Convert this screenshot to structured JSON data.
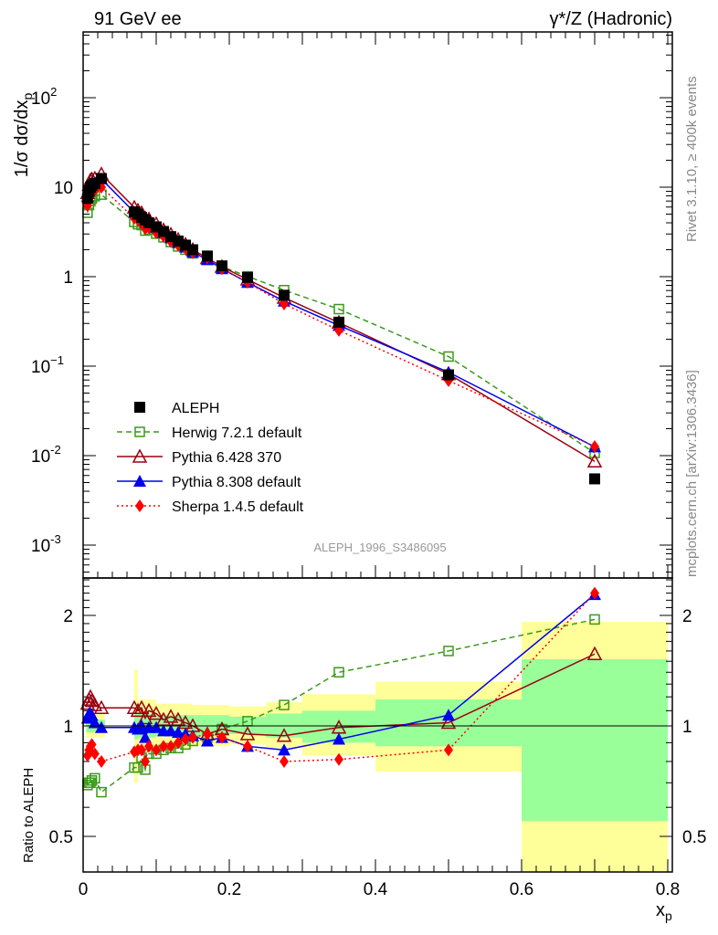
{
  "header": {
    "left_title": "91 GeV ee",
    "right_title": "γ*/Z (Hadronic)",
    "side_label_top": "Rivet 3.1.10, ≥ 400k events",
    "side_label_bottom": "mcplots.cern.ch [arXiv:1306.3436]",
    "watermark": "ALEPH_1996_S3486095"
  },
  "chart_data": {
    "type": "scatter",
    "title": "91 GeV ee — γ*/Z (Hadronic)",
    "xlabel": "x_p",
    "ylabel": "1/σ dσ/dx_p",
    "ratio_ylabel": "Ratio to ALEPH",
    "xlim": [
      0,
      0.8
    ],
    "ylim": [
      0.00043,
      540
    ],
    "yscale": "log",
    "ratio_ylim": [
      0.4,
      2.53
    ],
    "x_ticks": [
      "0",
      "0.2",
      "0.4",
      "0.6",
      "0.8"
    ],
    "y_ticks": [
      "10^-3",
      "10^-2",
      "10^-1",
      "1",
      "10",
      "10^2"
    ],
    "ratio_ticks": [
      "0.5",
      "1",
      "2"
    ],
    "legend_position": "middle-left",
    "x": [
      0.006,
      0.008,
      0.01,
      0.012,
      0.016,
      0.025,
      0.07,
      0.075,
      0.08,
      0.085,
      0.09,
      0.1,
      0.11,
      0.12,
      0.13,
      0.14,
      0.15,
      0.17,
      0.19,
      0.225,
      0.275,
      0.35,
      0.5,
      0.7
    ],
    "data": {
      "name": "ALEPH",
      "values": [
        7.5,
        9.0,
        10.0,
        10.5,
        11.0,
        12.5,
        5.3,
        5.0,
        4.6,
        4.3,
        4.0,
        3.6,
        3.2,
        2.8,
        2.5,
        2.25,
        2.0,
        1.7,
        1.32,
        0.98,
        0.62,
        0.31,
        0.08,
        0.0055
      ],
      "color": "#000000"
    },
    "series": [
      {
        "name": "Herwig 7.2.1 default",
        "color": "#3a9a1a",
        "marker": "open-square",
        "dash": "6,4",
        "ratio": [
          0.69,
          0.7,
          0.7,
          0.71,
          0.72,
          0.66,
          0.77,
          0.77,
          0.82,
          0.76,
          0.84,
          0.84,
          0.86,
          0.87,
          0.87,
          0.89,
          0.91,
          0.93,
          0.98,
          1.03,
          1.14,
          1.4,
          1.6,
          1.95
        ]
      },
      {
        "name": "Pythia 6.428 370",
        "color": "#990011",
        "marker": "open-triangle",
        "dash": "",
        "ratio": [
          1.15,
          1.18,
          1.2,
          1.17,
          1.14,
          1.12,
          1.12,
          1.1,
          1.12,
          1.05,
          1.1,
          1.08,
          1.04,
          1.06,
          1.04,
          1.02,
          1.0,
          0.95,
          0.98,
          0.95,
          0.94,
          0.99,
          1.02,
          1.57
        ]
      },
      {
        "name": "Pythia 8.308 default",
        "color": "#0000ee",
        "marker": "filled-triangle",
        "dash": "",
        "ratio": [
          1.05,
          1.08,
          1.08,
          1.07,
          1.02,
          0.99,
          0.99,
          0.98,
          1.0,
          0.93,
          0.99,
          0.99,
          0.97,
          0.97,
          0.96,
          0.95,
          0.94,
          0.91,
          0.93,
          0.88,
          0.86,
          0.92,
          1.07,
          2.28
        ]
      },
      {
        "name": "Sherpa 1.4.5 default",
        "color": "#ff0000",
        "marker": "filled-diamond",
        "dash": "2,3",
        "ratio": [
          0.83,
          0.86,
          0.88,
          0.89,
          0.84,
          0.8,
          0.85,
          0.86,
          0.86,
          0.8,
          0.88,
          0.86,
          0.88,
          0.88,
          0.9,
          0.92,
          0.93,
          0.95,
          0.93,
          0.88,
          0.8,
          0.81,
          0.86,
          2.3
        ]
      }
    ],
    "uncertainty_bands": {
      "stat_color": "#99ff99",
      "total_color": "#ffff99",
      "bins": [
        {
          "lo": 0.004,
          "hi": 0.03,
          "total": [
            0.93,
            1.08
          ],
          "stat": [
            0.96,
            1.04
          ]
        },
        {
          "lo": 0.07,
          "hi": 0.075,
          "total": [
            0.7,
            1.42
          ],
          "stat": [
            0.92,
            1.09
          ]
        },
        {
          "lo": 0.075,
          "hi": 0.1,
          "total": [
            0.85,
            1.18
          ],
          "stat": [
            0.93,
            1.08
          ]
        },
        {
          "lo": 0.1,
          "hi": 0.15,
          "total": [
            0.87,
            1.15
          ],
          "stat": [
            0.94,
            1.07
          ]
        },
        {
          "lo": 0.15,
          "hi": 0.2,
          "total": [
            0.88,
            1.14
          ],
          "stat": [
            0.94,
            1.07
          ]
        },
        {
          "lo": 0.2,
          "hi": 0.25,
          "total": [
            0.89,
            1.13
          ],
          "stat": [
            0.95,
            1.06
          ]
        },
        {
          "lo": 0.25,
          "hi": 0.3,
          "total": [
            0.87,
            1.16
          ],
          "stat": [
            0.93,
            1.08
          ]
        },
        {
          "lo": 0.3,
          "hi": 0.4,
          "total": [
            0.83,
            1.22
          ],
          "stat": [
            0.9,
            1.1
          ]
        },
        {
          "lo": 0.4,
          "hi": 0.6,
          "total": [
            0.75,
            1.32
          ],
          "stat": [
            0.88,
            1.18
          ]
        },
        {
          "lo": 0.6,
          "hi": 0.8,
          "total": [
            0.4,
            1.92
          ],
          "stat": [
            0.55,
            1.52
          ]
        }
      ]
    }
  }
}
